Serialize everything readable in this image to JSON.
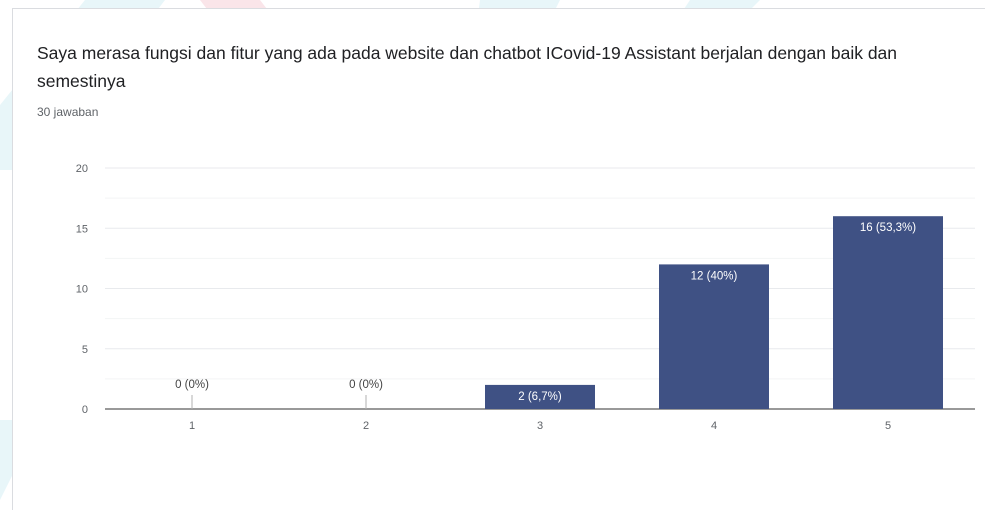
{
  "question": {
    "title": "Saya merasa fungsi dan fitur yang ada pada website dan chatbot ICovid-19 Assistant berjalan dengan baik dan semestinya",
    "response_count": "30 jawaban"
  },
  "colors": {
    "bar": "#3f5184",
    "bar_label": "#ffffff",
    "axis_text": "#5f6368",
    "grid": "#e8eaed"
  },
  "chart_data": {
    "type": "bar",
    "title": "Saya merasa fungsi dan fitur yang ada pada website dan chatbot ICovid-19 Assistant berjalan dengan baik dan semestinya",
    "categories": [
      "1",
      "2",
      "3",
      "4",
      "5"
    ],
    "values": [
      0,
      0,
      2,
      12,
      16
    ],
    "data_labels": [
      "0 (0%)",
      "0 (0%)",
      "2 (6,7%)",
      "12 (40%)",
      "16 (53,3%)"
    ],
    "yticks": [
      "0",
      "5",
      "10",
      "15",
      "20"
    ],
    "ylim": [
      0,
      20
    ],
    "xlabel": "",
    "ylabel": "",
    "grid": true
  }
}
